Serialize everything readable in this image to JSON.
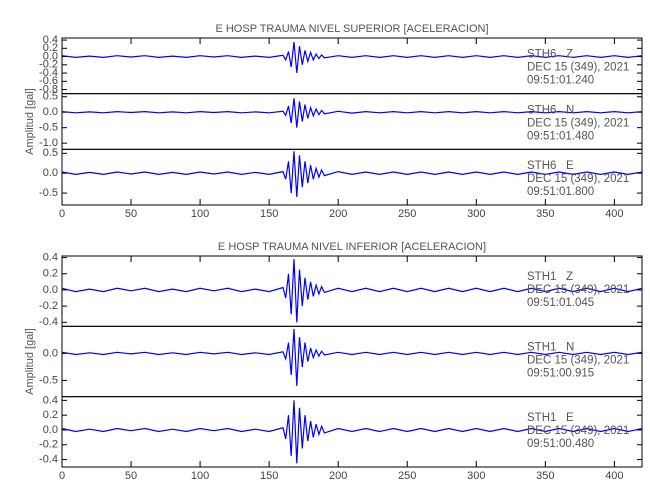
{
  "chart_data": [
    {
      "type": "line",
      "title": "E HOSP TRAUMA NIVEL SUPERIOR [ACELERACION]",
      "ylabel": "Amplitud [gal]",
      "xlim": [
        0,
        420
      ],
      "xticks": [
        0,
        50,
        100,
        150,
        200,
        250,
        300,
        350,
        400
      ],
      "x": [
        0,
        10,
        20,
        30,
        40,
        50,
        60,
        70,
        80,
        90,
        100,
        110,
        120,
        130,
        140,
        150,
        160,
        162,
        164,
        166,
        168,
        170,
        172,
        174,
        176,
        178,
        180,
        182,
        184,
        186,
        188,
        190,
        200,
        210,
        220,
        230,
        240,
        250,
        260,
        270,
        280,
        290,
        300,
        310,
        320,
        330,
        340,
        350,
        360,
        370,
        380,
        390,
        400,
        410,
        420
      ],
      "series": [
        {
          "name": "STH6   Z",
          "date": "DEC 15 (349), 2021",
          "time": "09:51:01.240",
          "color": "#0000ff",
          "ylim": [
            -0.9,
            0.45
          ],
          "yticks": [
            0.4,
            0.2,
            {
              "value": 0,
              "label": "0.0"
            },
            -0.2,
            -0.4,
            -0.6,
            -0.8
          ],
          "values": [
            0.02,
            -0.02,
            0.01,
            -0.02,
            0.02,
            -0.01,
            0.02,
            -0.02,
            0.01,
            -0.02,
            0.02,
            -0.01,
            0.02,
            -0.02,
            0.01,
            -0.02,
            0.03,
            -0.08,
            0.12,
            -0.25,
            0.35,
            -0.4,
            0.25,
            -0.2,
            0.15,
            -0.12,
            0.1,
            -0.08,
            0.06,
            -0.05,
            0.04,
            -0.03,
            0.02,
            -0.02,
            0.02,
            -0.02,
            0.02,
            -0.02,
            0.02,
            -0.02,
            0.02,
            -0.02,
            0.02,
            -0.02,
            0.02,
            -0.02,
            0.02,
            -0.02,
            0.02,
            -0.02,
            0.02,
            -0.02,
            0.02,
            -0.02,
            0.02
          ]
        },
        {
          "name": "STH6   N",
          "date": "DEC 15 (349), 2021",
          "time": "09:51:01.480",
          "color": "#0000ff",
          "ylim": [
            -1.2,
            0.6
          ],
          "yticks": [
            0.5,
            {
              "value": 0,
              "label": "0.0"
            },
            -0.5,
            {
              "value": -1,
              "label": "-1.0"
            }
          ],
          "values": [
            0.02,
            -0.02,
            0.01,
            -0.02,
            0.02,
            -0.01,
            0.02,
            -0.02,
            0.01,
            -0.02,
            0.02,
            -0.01,
            0.02,
            -0.02,
            0.01,
            -0.02,
            0.03,
            -0.1,
            0.2,
            -0.35,
            0.45,
            -0.5,
            0.35,
            -0.3,
            0.25,
            -0.2,
            0.15,
            -0.12,
            0.1,
            -0.08,
            0.06,
            -0.05,
            0.03,
            -0.03,
            0.02,
            -0.02,
            0.02,
            -0.02,
            0.02,
            -0.02,
            0.02,
            -0.02,
            0.02,
            -0.02,
            0.02,
            -0.02,
            0.02,
            -0.02,
            0.02,
            -0.02,
            0.02,
            -0.02,
            0.02,
            -0.02,
            0.02
          ]
        },
        {
          "name": "STH6   E",
          "date": "DEC 15 (349), 2021",
          "time": "09:51:01.800",
          "color": "#0000ff",
          "ylim": [
            -0.8,
            0.6
          ],
          "yticks": [
            0.5,
            {
              "value": 0,
              "label": "0.0"
            },
            -0.5
          ],
          "values": [
            0.03,
            -0.03,
            0.02,
            -0.03,
            0.03,
            -0.02,
            0.03,
            -0.03,
            0.02,
            -0.03,
            0.03,
            -0.02,
            0.03,
            -0.03,
            0.02,
            -0.03,
            0.04,
            -0.15,
            0.3,
            -0.5,
            0.55,
            -0.6,
            0.45,
            -0.35,
            0.3,
            -0.25,
            0.2,
            -0.15,
            0.12,
            -0.1,
            0.08,
            -0.06,
            0.04,
            -0.03,
            0.03,
            -0.03,
            0.03,
            -0.03,
            0.03,
            -0.03,
            0.03,
            -0.03,
            0.03,
            -0.03,
            0.03,
            -0.03,
            0.03,
            -0.03,
            0.03,
            -0.03,
            0.03,
            -0.03,
            0.03,
            -0.03,
            0.03
          ]
        }
      ]
    },
    {
      "type": "line",
      "title": "E HOSP TRAUMA NIVEL INFERIOR [ACELERACION]",
      "ylabel": "Amplitud [gal]",
      "xlim": [
        0,
        420
      ],
      "xticks": [
        0,
        50,
        100,
        150,
        200,
        250,
        300,
        350,
        400
      ],
      "x": [
        0,
        10,
        20,
        30,
        40,
        50,
        60,
        70,
        80,
        90,
        100,
        110,
        120,
        130,
        140,
        150,
        160,
        162,
        164,
        166,
        168,
        170,
        172,
        174,
        176,
        178,
        180,
        182,
        184,
        186,
        188,
        190,
        200,
        210,
        220,
        230,
        240,
        250,
        260,
        270,
        280,
        290,
        300,
        310,
        320,
        330,
        340,
        350,
        360,
        370,
        380,
        390,
        400,
        410,
        420
      ],
      "series": [
        {
          "name": "STH1   Z",
          "date": "DEC 15 (349), 2021",
          "time": "09:51:01.045",
          "color": "#0000ff",
          "ylim": [
            -0.45,
            0.42
          ],
          "yticks": [
            0.4,
            0.2,
            {
              "value": 0,
              "label": "0.0"
            },
            -0.2,
            -0.4
          ],
          "values": [
            0.02,
            -0.02,
            0.01,
            -0.02,
            0.02,
            -0.01,
            0.02,
            -0.02,
            0.01,
            -0.02,
            0.02,
            -0.01,
            0.02,
            -0.02,
            0.01,
            -0.02,
            0.03,
            -0.1,
            0.2,
            -0.3,
            0.38,
            -0.4,
            0.25,
            -0.2,
            0.15,
            -0.12,
            0.1,
            -0.08,
            0.06,
            -0.05,
            0.04,
            -0.03,
            0.02,
            -0.02,
            0.02,
            -0.02,
            0.02,
            -0.02,
            0.02,
            -0.02,
            0.02,
            -0.02,
            0.02,
            -0.02,
            0.02,
            -0.02,
            0.02,
            -0.02,
            0.02,
            -0.02,
            0.02,
            -0.02,
            0.02,
            -0.02,
            0.02
          ]
        },
        {
          "name": "STH1   N",
          "date": "DEC 15 (349), 2021",
          "time": "09:51:00.915",
          "color": "#0000ff",
          "ylim": [
            -0.8,
            0.5
          ],
          "yticks": [
            {
              "value": 0,
              "label": "0.0"
            },
            -0.5
          ],
          "values": [
            0.02,
            -0.02,
            0.01,
            -0.02,
            0.02,
            -0.01,
            0.02,
            -0.02,
            0.01,
            -0.02,
            0.02,
            -0.01,
            0.02,
            -0.02,
            0.01,
            -0.02,
            0.03,
            -0.1,
            0.2,
            -0.4,
            0.45,
            -0.6,
            0.3,
            -0.25,
            0.2,
            -0.15,
            0.1,
            -0.08,
            0.06,
            -0.05,
            0.04,
            -0.03,
            0.02,
            -0.02,
            0.02,
            -0.02,
            0.02,
            -0.02,
            0.02,
            -0.02,
            0.02,
            -0.02,
            0.02,
            -0.02,
            0.02,
            -0.02,
            0.02,
            -0.02,
            0.02,
            -0.02,
            0.02,
            -0.02,
            0.02,
            -0.02,
            0.02
          ]
        },
        {
          "name": "STH1   E",
          "date": "DEC 15 (349), 2021",
          "time": "09:51:00.480",
          "color": "#0000ff",
          "ylim": [
            -0.5,
            0.45
          ],
          "yticks": [
            0.4,
            0.2,
            {
              "value": 0,
              "label": "0.0"
            },
            -0.2,
            -0.4
          ],
          "values": [
            0.02,
            -0.02,
            0.01,
            -0.02,
            0.02,
            -0.01,
            0.02,
            -0.02,
            0.01,
            -0.02,
            0.02,
            -0.01,
            0.02,
            -0.02,
            0.01,
            -0.02,
            0.03,
            -0.12,
            0.2,
            -0.35,
            0.4,
            -0.45,
            0.3,
            -0.25,
            0.2,
            -0.15,
            0.12,
            -0.1,
            0.08,
            -0.06,
            0.05,
            -0.04,
            0.02,
            -0.02,
            0.02,
            -0.02,
            0.02,
            -0.02,
            0.02,
            -0.02,
            0.02,
            -0.02,
            0.02,
            -0.02,
            0.02,
            -0.02,
            0.02,
            -0.02,
            0.02,
            -0.02,
            0.02,
            -0.02,
            0.02,
            -0.02,
            0.02
          ]
        }
      ]
    }
  ]
}
